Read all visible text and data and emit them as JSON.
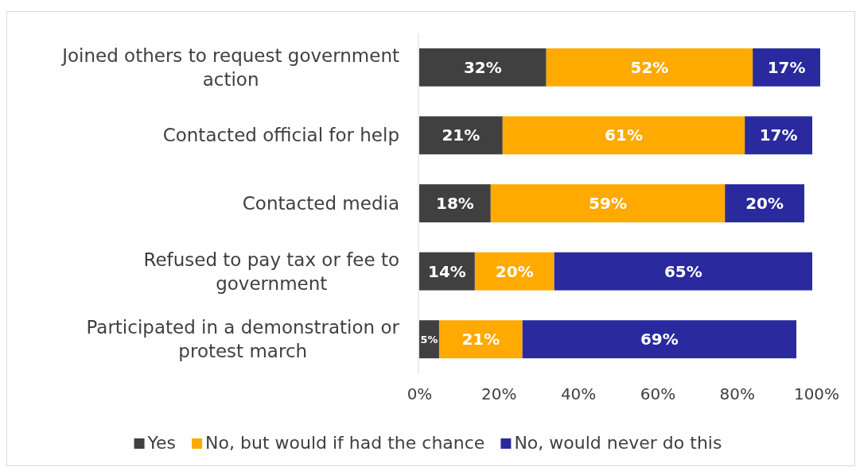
{
  "chart_data": {
    "type": "bar",
    "orientation": "horizontal",
    "stacked": true,
    "categories": [
      "Joined others to request government action",
      "Contacted official for help",
      "Contacted media",
      "Refused to pay tax or fee to government",
      "Participated in a demonstration or protest march"
    ],
    "series": [
      {
        "name": "Yes",
        "color": "#404040",
        "values": [
          32,
          21,
          18,
          14,
          5
        ],
        "value_labels": [
          "32%",
          "21%",
          "18%",
          "14%",
          "5%"
        ]
      },
      {
        "name": "No, but would if had the chance",
        "color": "#ffaa00",
        "values": [
          52,
          61,
          59,
          20,
          21
        ],
        "value_labels": [
          "52%",
          "61%",
          "59%",
          "20%",
          "21%"
        ]
      },
      {
        "name": "No, would never do this",
        "color": "#2a2a9e",
        "values": [
          17,
          17,
          20,
          65,
          69
        ],
        "value_labels": [
          "17%",
          "17%",
          "20%",
          "65%",
          "69%"
        ]
      }
    ],
    "xlim": [
      0,
      101
    ],
    "xticks": [
      {
        "value": 0,
        "label": "0%"
      },
      {
        "value": 20,
        "label": "20%"
      },
      {
        "value": 40,
        "label": "40%"
      },
      {
        "value": 60,
        "label": "60%"
      },
      {
        "value": 80,
        "label": "80%"
      },
      {
        "value": 100,
        "label": "100%"
      }
    ],
    "grid": false,
    "legend": "bottom"
  }
}
